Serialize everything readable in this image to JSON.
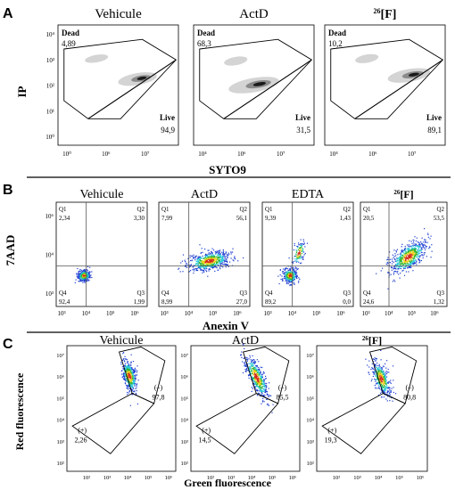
{
  "panel_a": {
    "letter": "A",
    "ylabel": "IP",
    "xlabel": "SYTO9",
    "plots": [
      {
        "title": "Vehicule",
        "dead_label": "Dead",
        "dead_value": "4,89",
        "live_label": "Live",
        "live_value": "94,9",
        "y_ticks": [
          "10⁴",
          "10³",
          "10²",
          "10¹",
          "10⁰"
        ],
        "x_ticks": [
          "10⁰",
          "10⁶",
          "10⁷"
        ]
      },
      {
        "title": "ActD",
        "dead_label": "Dead",
        "dead_value": "68,3",
        "live_label": "Live",
        "live_value": "31,5",
        "y_ticks": [],
        "x_ticks": [
          "10⁴",
          "10⁶",
          "10⁷"
        ]
      },
      {
        "title_sup": "26",
        "title_main": "[F]",
        "dead_label": "Dead",
        "dead_value": "10,2",
        "live_label": "Live",
        "live_value": "89,1",
        "y_ticks": [],
        "x_ticks": [
          "10⁴",
          "10⁶",
          "10⁷"
        ]
      }
    ]
  },
  "panel_b": {
    "letter": "B",
    "ylabel": "7AAD",
    "xlabel": "Anexin V",
    "plots": [
      {
        "title": "Vehicule",
        "q1_label": "Q1",
        "q1": "2,34",
        "q2_label": "Q2",
        "q2": "3,30",
        "q3_label": "Q3",
        "q3": "1,99",
        "q4_label": "Q4",
        "q4": "92,4",
        "y_ticks": [
          "10⁶",
          "10⁴",
          "10³"
        ],
        "x_ticks": [
          "10³",
          "10⁴",
          "10⁵",
          "10⁶"
        ]
      },
      {
        "title": "ActD",
        "q1_label": "Q1",
        "q1": "7,99",
        "q2_label": "Q2",
        "q2": "56,1",
        "q3_label": "Q3",
        "q3": "27,0",
        "q4_label": "Q4",
        "q4": "8,99",
        "y_ticks": [],
        "x_ticks": [
          "10³",
          "10⁴",
          "10⁵",
          "10⁶"
        ]
      },
      {
        "title": "EDTA",
        "q1_label": "Q1",
        "q1": "9,39",
        "q2_label": "Q2",
        "q2": "1,43",
        "q3_label": "Q3",
        "q3": "0,0",
        "q4_label": "Q4",
        "q4": "89,2",
        "y_ticks": [],
        "x_ticks": [
          "10³",
          "10⁴",
          "10⁵",
          "10⁶"
        ]
      },
      {
        "title_sup": "26",
        "title_main": "[F]",
        "q1_label": "Q1",
        "q1": "20,5",
        "q2_label": "Q2",
        "q2": "53,5",
        "q3_label": "Q3",
        "q3": "1,32",
        "q4_label": "Q4",
        "q4": "24,6",
        "y_ticks": [],
        "x_ticks": [
          "10³",
          "10⁴",
          "10⁵",
          "10⁶"
        ]
      }
    ]
  },
  "panel_c": {
    "letter": "C",
    "ylabel": "Red fluorescence",
    "xlabel": "Green fluorescence",
    "plots": [
      {
        "title": "Vehicule",
        "pos_label": "(+)",
        "pos_value": "2,26",
        "neg_label": "(–)",
        "neg_value": "97,8",
        "y_ticks": [
          "10⁷",
          "10⁶",
          "10⁵",
          "10⁴",
          "10³",
          "10²"
        ],
        "x_ticks": [
          "10²",
          "10³",
          "10⁴",
          "10⁵",
          "10⁶"
        ]
      },
      {
        "title": "ActD",
        "pos_label": "(+)",
        "pos_value": "14,5",
        "neg_label": "(–)",
        "neg_value": "85,5",
        "y_ticks": [
          "10⁷",
          "10⁶",
          "10⁵",
          "10⁴",
          "10³",
          "10²"
        ],
        "x_ticks": [
          "10²",
          "10³",
          "10⁴",
          "10⁵",
          "10⁶"
        ]
      },
      {
        "title_sup": "26",
        "title_main": "[F]",
        "pos_label": "(+)",
        "pos_value": "19,3",
        "neg_label": "(–)",
        "neg_value": "80,8",
        "y_ticks": [
          "10⁷",
          "10⁶",
          "10⁵",
          "10⁴",
          "10³",
          "10²"
        ],
        "x_ticks": [
          "10²",
          "10³",
          "10⁴",
          "10⁵",
          "10⁶"
        ]
      }
    ]
  },
  "colors": {
    "frame": "#000000",
    "divider": "#000000",
    "contour_light": "#cfcfcf",
    "contour_dark": "#1a1a1a",
    "dot_blue": "#1f3fd1",
    "dot_cyan": "#27c9d6",
    "dot_green": "#2fb52f",
    "dot_yellow": "#e9d21b",
    "dot_red": "#d4281c"
  }
}
